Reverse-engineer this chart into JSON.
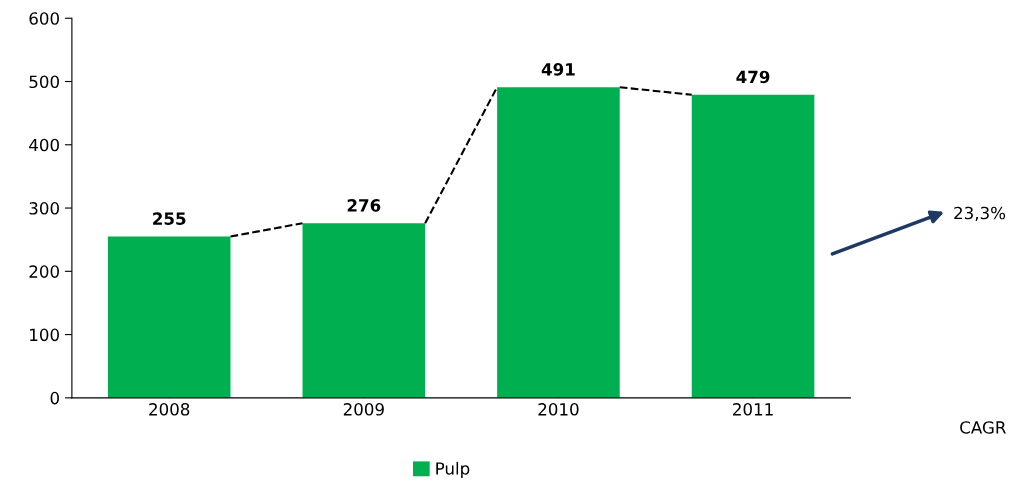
{
  "chart_data": {
    "type": "bar",
    "categories": [
      "2008",
      "2009",
      "2010",
      "2011"
    ],
    "series": [
      {
        "name": "Pulp",
        "color": "#00b050",
        "values": [
          255,
          276,
          491,
          479
        ]
      }
    ],
    "ylim": [
      0,
      600
    ],
    "yticks": [
      0,
      100,
      200,
      300,
      400,
      500,
      600
    ],
    "data_labels": true,
    "grid": false,
    "legend": "bottom",
    "annotations": [
      "23,3%",
      "CAGR"
    ]
  }
}
